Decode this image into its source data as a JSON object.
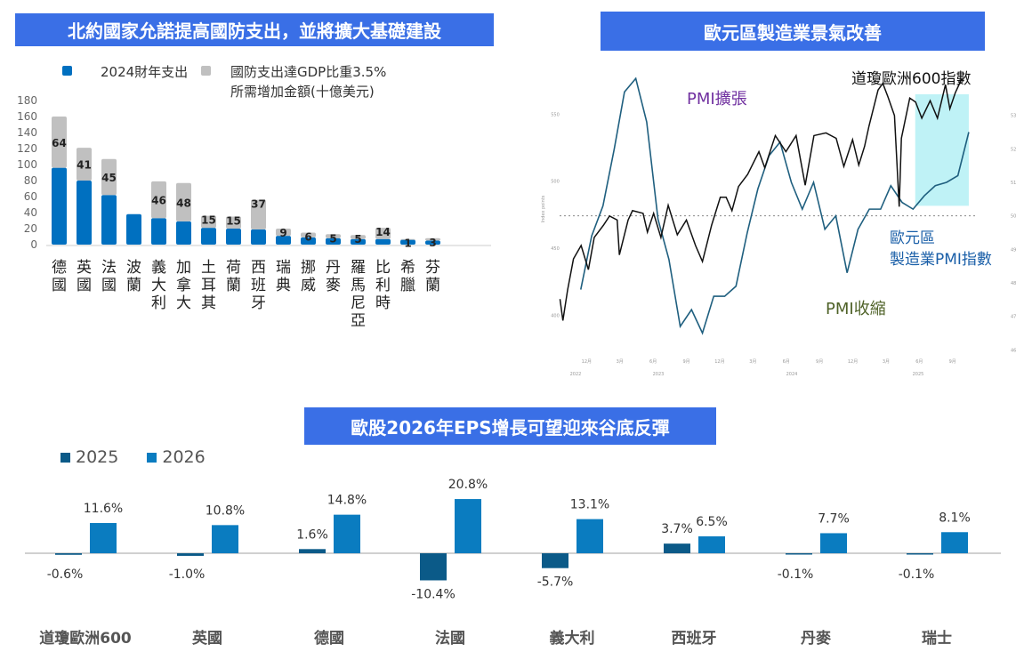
{
  "panels": {
    "defense": {
      "title": "北約國家允諾提高國防支出，並將擴大基礎建設"
    },
    "pmi": {
      "title": "歐元區製造業景氣改善"
    },
    "eps": {
      "title": "歐股2026年EPS增長可望迎來谷底反彈"
    }
  },
  "chart_data": [
    {
      "type": "bar",
      "stacked": true,
      "categories": [
        "德國",
        "英國",
        "法國",
        "波蘭",
        "義大利",
        "加拿大",
        "土耳其",
        "荷蘭",
        "西班牙",
        "瑞典",
        "挪威",
        "丹麥",
        "羅馬尼亞",
        "比利時",
        "希臘",
        "芬蘭"
      ],
      "series": [
        {
          "name": "2024財年支出",
          "color": "#0070c0",
          "values": [
            96,
            80,
            62,
            38,
            33,
            29,
            21,
            20,
            19,
            11,
            9,
            8,
            7,
            7,
            6,
            5
          ]
        },
        {
          "name": "國防支出達GDP比重3.5%所需增加金額(十億美元)",
          "color": "#c0c0c0",
          "values": [
            64,
            41,
            45,
            0,
            46,
            48,
            15,
            15,
            37,
            9,
            6,
            5,
            5,
            14,
            1,
            3
          ]
        }
      ],
      "data_labels": [
        "64",
        "41",
        "45",
        "",
        "46",
        "48",
        "15",
        "15",
        "37",
        "9",
        "6",
        "5",
        "5",
        "14",
        "1",
        "3"
      ],
      "legend": {
        "item1": "2024財年支出",
        "item2_line1": "國防支出達GDP比重3.5%",
        "item2_line2": "所需增加金額(十億美元)",
        "position": "top"
      },
      "yticks": [
        "0",
        "20",
        "40",
        "60",
        "80",
        "100",
        "120",
        "140",
        "160",
        "180"
      ],
      "ylim": [
        0,
        180
      ],
      "grid": false
    },
    {
      "type": "line",
      "annotations": {
        "stoxx": "道瓊歐洲600指數",
        "pmi": "歐元區\n製造業PMI指數",
        "pmi_line1": "歐元區",
        "pmi_line2": "製造業PMI指數",
        "expansion": "PMI擴張",
        "contraction": "PMI收縮"
      },
      "ylabel_left": "Index points",
      "left_yticks": [
        "400",
        "450",
        "500",
        "550"
      ],
      "right_yticks": [
        "46",
        "47",
        "48",
        "49",
        "50",
        "51",
        "52",
        "53"
      ],
      "xticks": [
        "12月",
        "3月",
        "6月",
        "9月",
        "12月",
        "3月",
        "6月",
        "9月",
        "12月",
        "3月",
        "6月",
        "9月"
      ],
      "xyears": [
        "2022",
        "2023",
        "2024",
        "2025"
      ],
      "reference_line": 50,
      "highlight_range": [
        "2025-05-21",
        "2025-10-15"
      ],
      "series": [
        {
          "name": "道瓊歐洲600指數",
          "axis": "left",
          "color": "#111111",
          "points": [
            [
              "2022-09-19",
              412
            ],
            [
              "2022-09-27",
              396
            ],
            [
              "2022-10-10",
              419
            ],
            [
              "2022-10-26",
              442
            ],
            [
              "2022-11-16",
              452
            ],
            [
              "2022-12-06",
              434
            ],
            [
              "2022-12-22",
              458
            ],
            [
              "2023-01-16",
              467
            ],
            [
              "2023-02-02",
              474
            ],
            [
              "2023-02-23",
              471
            ],
            [
              "2023-03-01",
              445
            ],
            [
              "2023-03-25",
              471
            ],
            [
              "2023-04-06",
              478
            ],
            [
              "2023-05-05",
              476
            ],
            [
              "2023-05-17",
              462
            ],
            [
              "2023-06-03",
              476
            ],
            [
              "2023-06-23",
              458
            ],
            [
              "2023-07-13",
              482
            ],
            [
              "2023-08-07",
              460
            ],
            [
              "2023-09-01",
              471
            ],
            [
              "2023-09-26",
              452
            ],
            [
              "2023-10-15",
              440
            ],
            [
              "2023-11-09",
              467
            ],
            [
              "2023-12-03",
              488
            ],
            [
              "2023-12-19",
              488
            ],
            [
              "2024-01-04",
              478
            ],
            [
              "2024-01-22",
              496
            ],
            [
              "2024-02-16",
              505
            ],
            [
              "2024-03-18",
              522
            ],
            [
              "2024-04-03",
              510
            ],
            [
              "2024-05-02",
              534
            ],
            [
              "2024-05-31",
              522
            ],
            [
              "2024-06-28",
              534
            ],
            [
              "2024-07-23",
              497
            ],
            [
              "2024-08-16",
              534
            ],
            [
              "2024-09-18",
              536
            ],
            [
              "2024-10-16",
              532
            ],
            [
              "2024-11-06",
              511
            ],
            [
              "2024-11-30",
              531
            ],
            [
              "2024-12-17",
              512
            ],
            [
              "2025-01-02",
              526
            ],
            [
              "2025-01-14",
              541
            ],
            [
              "2025-02-08",
              568
            ],
            [
              "2025-02-21",
              573
            ],
            [
              "2025-03-07",
              563
            ],
            [
              "2025-03-25",
              549
            ],
            [
              "2025-04-07",
              481
            ],
            [
              "2025-04-13",
              532
            ],
            [
              "2025-05-06",
              562
            ],
            [
              "2025-05-22",
              559
            ],
            [
              "2025-06-08",
              547
            ],
            [
              "2025-07-01",
              560
            ],
            [
              "2025-07-21",
              547
            ],
            [
              "2025-08-12",
              572
            ],
            [
              "2025-08-24",
              554
            ],
            [
              "2025-09-08",
              566
            ],
            [
              "2025-09-25",
              576
            ],
            [
              "2025-10-02",
              575
            ]
          ]
        },
        {
          "name": "歐元區製造業PMI指數",
          "axis": "right",
          "color": "#1f5f7f",
          "points": [
            [
              "2022-11",
              47.8
            ],
            [
              "2022-12",
              49.4
            ],
            [
              "2023-01",
              50.3
            ],
            [
              "2023-02",
              52.0
            ],
            [
              "2023-03",
              53.7
            ],
            [
              "2023-04",
              54.1
            ],
            [
              "2023-05",
              52.8
            ],
            [
              "2023-06",
              49.9
            ],
            [
              "2023-07",
              48.7
            ],
            [
              "2023-08",
              46.7
            ],
            [
              "2023-09",
              47.2
            ],
            [
              "2023-10",
              46.5
            ],
            [
              "2023-11",
              47.6
            ],
            [
              "2023-12",
              47.6
            ],
            [
              "2024-01",
              47.9
            ],
            [
              "2024-02",
              49.5
            ],
            [
              "2024-03",
              50.8
            ],
            [
              "2024-04",
              51.8
            ],
            [
              "2024-05",
              52.2
            ],
            [
              "2024-06",
              51.0
            ],
            [
              "2024-07",
              50.2
            ],
            [
              "2024-08",
              51.0
            ],
            [
              "2024-09",
              49.6
            ],
            [
              "2024-10",
              50.0
            ],
            [
              "2024-11",
              48.3
            ],
            [
              "2024-12",
              49.6
            ],
            [
              "2025-01",
              50.2
            ],
            [
              "2025-02",
              50.2
            ],
            [
              "2025-03",
              50.9
            ],
            [
              "2025-04",
              50.4
            ],
            [
              "2025-05",
              50.2
            ],
            [
              "2025-06",
              50.6
            ],
            [
              "2025-07",
              50.9
            ],
            [
              "2025-08",
              51.0
            ],
            [
              "2025-09",
              51.2
            ],
            [
              "2025-10",
              52.5
            ]
          ]
        }
      ]
    },
    {
      "type": "bar",
      "categories": [
        "道瓊歐洲600",
        "英國",
        "德國",
        "法國",
        "義大利",
        "西班牙",
        "丹麥",
        "瑞士"
      ],
      "series": [
        {
          "name": "2025",
          "color": "#0b5a88",
          "values": [
            -0.6,
            -1.0,
            1.6,
            -10.4,
            -5.7,
            3.7,
            -0.1,
            -0.1
          ],
          "labels": [
            "-0.6%",
            "-1.0%",
            "1.6%",
            "-10.4%",
            "-5.7%",
            "3.7%",
            "-0.1%",
            "-0.1%"
          ]
        },
        {
          "name": "2026",
          "color": "#0a7cc0",
          "values": [
            11.6,
            10.8,
            14.8,
            20.8,
            13.1,
            6.5,
            7.7,
            8.1
          ],
          "labels": [
            "11.6%",
            "10.8%",
            "14.8%",
            "20.8%",
            "13.1%",
            "6.5%",
            "7.7%",
            "8.1%"
          ]
        }
      ],
      "legend_position": "top-left",
      "grid": false
    }
  ]
}
